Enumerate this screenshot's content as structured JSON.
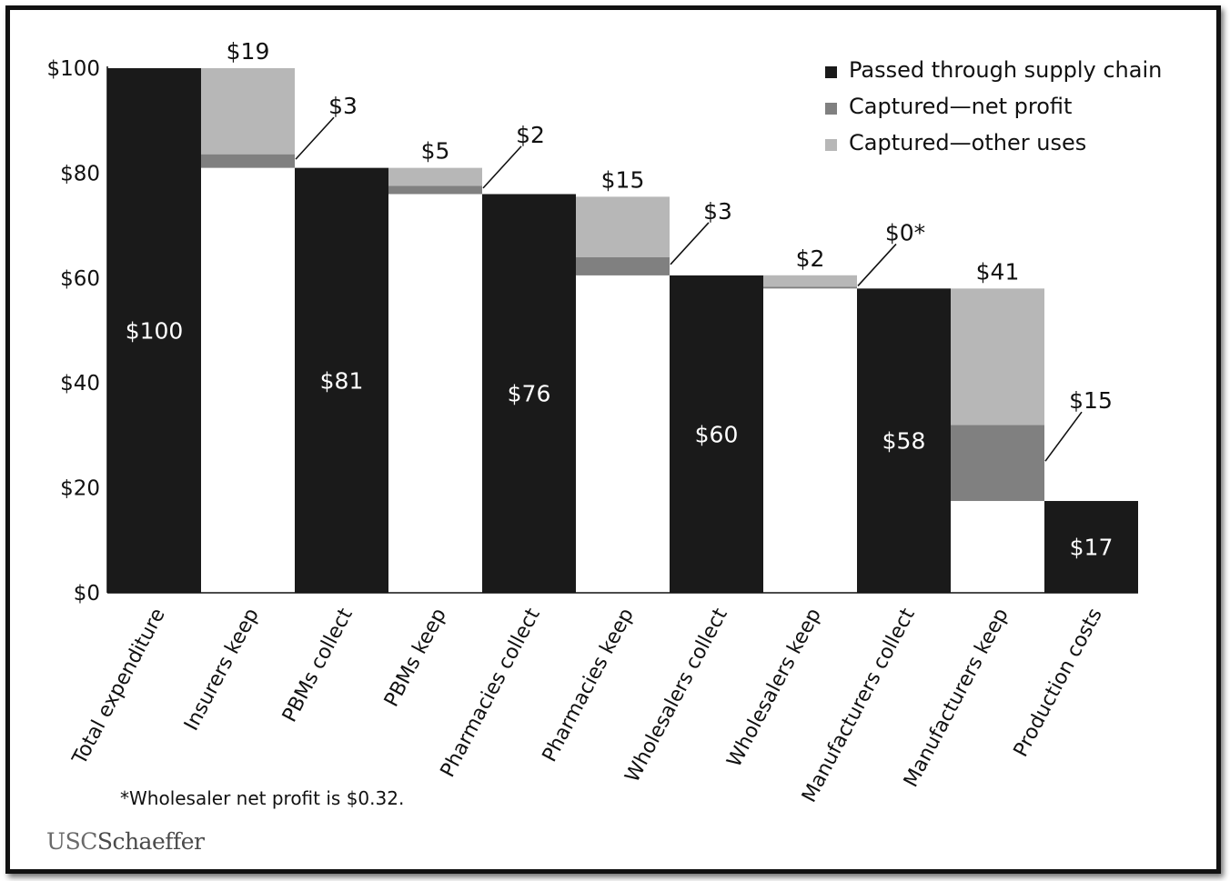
{
  "colors": {
    "passed": "#1a1a1a",
    "net_profit": "#808080",
    "other_uses": "#b7b7b7",
    "axis": "#111111"
  },
  "chart_data": {
    "type": "bar",
    "subtype": "waterfall",
    "title": "",
    "xlabel": "",
    "ylabel": "",
    "ylim": [
      0,
      100
    ],
    "yticks": [
      0,
      20,
      40,
      60,
      80,
      100
    ],
    "ytick_labels": [
      "$0",
      "$20",
      "$40",
      "$60",
      "$80",
      "$100"
    ],
    "legend_position": "top-right",
    "legend": [
      {
        "key": "passed",
        "label": "Passed through supply chain"
      },
      {
        "key": "net_profit",
        "label": "Captured—net profit"
      },
      {
        "key": "other_uses",
        "label": "Captured—other uses"
      }
    ],
    "categories": [
      "Total expenditure",
      "Insurers keep",
      "PBMs collect",
      "PBMs keep",
      "Pharmacies collect",
      "Pharmacies keep",
      "Wholesalers collect",
      "Wholesalers keep",
      "Manufacturers collect",
      "Manufacturers keep",
      "Production costs"
    ],
    "bars": [
      {
        "kind": "total",
        "value": 100,
        "label": "$100"
      },
      {
        "kind": "captured",
        "base": 81,
        "net_profit": 2.6,
        "other_uses": 16.4,
        "label": "$19",
        "profit_label": "$3"
      },
      {
        "kind": "total",
        "value": 81,
        "label": "$81"
      },
      {
        "kind": "captured",
        "base": 76,
        "net_profit": 1.6,
        "other_uses": 3.4,
        "label": "$5",
        "profit_label": "$2"
      },
      {
        "kind": "total",
        "value": 76,
        "label": "$76"
      },
      {
        "kind": "captured",
        "base": 60.5,
        "net_profit": 3.5,
        "other_uses": 11.5,
        "label": "$15",
        "profit_label": "$3"
      },
      {
        "kind": "total",
        "value": 60.5,
        "label": "$60"
      },
      {
        "kind": "captured",
        "base": 58,
        "net_profit": 0.32,
        "other_uses": 2.2,
        "label": "$2",
        "profit_label": "$0*"
      },
      {
        "kind": "total",
        "value": 58,
        "label": "$58"
      },
      {
        "kind": "captured",
        "base": 17.5,
        "net_profit": 14.5,
        "other_uses": 26,
        "label": "$41",
        "profit_label": "$15"
      },
      {
        "kind": "total",
        "value": 17.5,
        "label": "$17"
      }
    ]
  },
  "footnote": "*Wholesaler net profit is $0.32.",
  "logo": {
    "usc": "USC",
    "schaeffer": "Schaeffer"
  }
}
